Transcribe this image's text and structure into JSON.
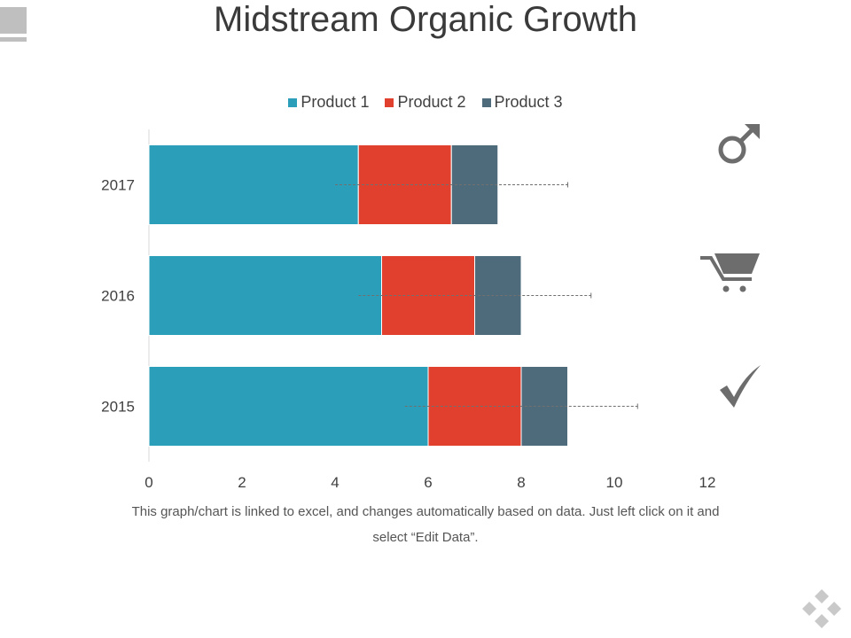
{
  "slide": {
    "title": "Midstream Organic Growth",
    "footnote": "This graph/chart is linked to excel, and changes automatically based on data. Just left click on it and select “Edit Data”."
  },
  "icons": [
    "male-symbol-icon",
    "shopping-cart-icon",
    "checkmark-icon",
    "diamond-navigation-icon"
  ],
  "chart_data": {
    "type": "bar",
    "orientation": "horizontal",
    "stacked": true,
    "categories": [
      "2017",
      "2016",
      "2015"
    ],
    "series": [
      {
        "name": "Product 1",
        "values": [
          4.5,
          5,
          6
        ],
        "color": "#2b9fba"
      },
      {
        "name": "Product 2",
        "values": [
          2,
          2,
          2
        ],
        "color": "#e2402f"
      },
      {
        "name": "Product 3",
        "values": [
          1,
          1,
          1
        ],
        "color": "#4e6b7b"
      }
    ],
    "trend_lines": [
      {
        "category": "2017",
        "from": 4,
        "to": 9
      },
      {
        "category": "2016",
        "from": 4.5,
        "to": 9.5
      },
      {
        "category": "2015",
        "from": 5.5,
        "to": 10.5
      }
    ],
    "xlim": [
      0,
      12
    ],
    "x_ticks": [
      "0",
      "2",
      "4",
      "6",
      "8",
      "10",
      "12"
    ],
    "legend_position": "top",
    "grid": false,
    "title": "",
    "xlabel": "",
    "ylabel": ""
  }
}
